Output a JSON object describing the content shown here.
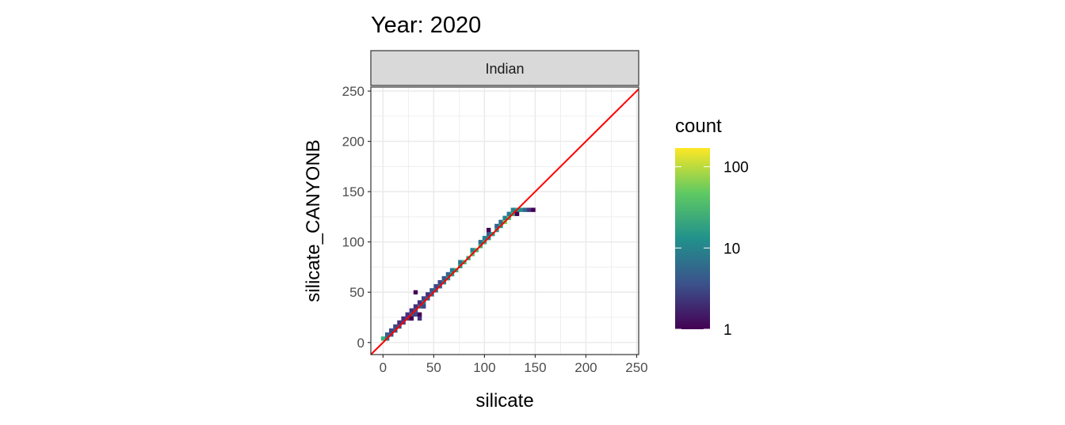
{
  "chart_data": {
    "type": "heatmap",
    "title": "Year: 2020",
    "facet": "Indian",
    "xlabel": "silicate",
    "ylabel": "silicate_CANYONB",
    "xlim": [
      -12,
      252
    ],
    "ylim": [
      -12,
      254
    ],
    "xticks": [
      0,
      50,
      100,
      150,
      200,
      250
    ],
    "yticks": [
      0,
      50,
      100,
      150,
      200,
      250
    ],
    "grid": true,
    "reference_line": {
      "slope": 1,
      "intercept": 0,
      "color": "#FF0000"
    },
    "legend": {
      "title": "count",
      "scale": "log10",
      "range": [
        1,
        170
      ],
      "ticks": [
        1,
        10,
        100
      ],
      "placement": "right",
      "palette": "viridis"
    },
    "binwidth": 4,
    "bins": [
      [
        0,
        4,
        30
      ],
      [
        4,
        4,
        8
      ],
      [
        4,
        8,
        5
      ],
      [
        8,
        8,
        4
      ],
      [
        8,
        12,
        3
      ],
      [
        12,
        12,
        5
      ],
      [
        12,
        16,
        3
      ],
      [
        16,
        16,
        4
      ],
      [
        16,
        20,
        2
      ],
      [
        20,
        20,
        3
      ],
      [
        20,
        24,
        2
      ],
      [
        24,
        24,
        3
      ],
      [
        24,
        28,
        2
      ],
      [
        28,
        28,
        5
      ],
      [
        28,
        32,
        2
      ],
      [
        28,
        24,
        1
      ],
      [
        32,
        32,
        4
      ],
      [
        32,
        36,
        2
      ],
      [
        32,
        28,
        3
      ],
      [
        32,
        50,
        1
      ],
      [
        36,
        36,
        6
      ],
      [
        36,
        40,
        2
      ],
      [
        36,
        28,
        1
      ],
      [
        36,
        24,
        2
      ],
      [
        40,
        40,
        8
      ],
      [
        40,
        44,
        3
      ],
      [
        40,
        36,
        3
      ],
      [
        44,
        44,
        5
      ],
      [
        44,
        48,
        2
      ],
      [
        48,
        48,
        6
      ],
      [
        48,
        52,
        4
      ],
      [
        52,
        52,
        8
      ],
      [
        52,
        56,
        3
      ],
      [
        56,
        56,
        6
      ],
      [
        56,
        60,
        3
      ],
      [
        60,
        60,
        12
      ],
      [
        60,
        64,
        4
      ],
      [
        64,
        64,
        14
      ],
      [
        64,
        68,
        5
      ],
      [
        68,
        68,
        20
      ],
      [
        68,
        72,
        8
      ],
      [
        72,
        72,
        25
      ],
      [
        76,
        76,
        20
      ],
      [
        76,
        80,
        8
      ],
      [
        80,
        80,
        30
      ],
      [
        84,
        84,
        25
      ],
      [
        88,
        88,
        40
      ],
      [
        88,
        92,
        10
      ],
      [
        92,
        92,
        35
      ],
      [
        96,
        96,
        30
      ],
      [
        96,
        100,
        6
      ],
      [
        100,
        100,
        25
      ],
      [
        100,
        104,
        10
      ],
      [
        104,
        104,
        12
      ],
      [
        104,
        108,
        5
      ],
      [
        104,
        112,
        1
      ],
      [
        108,
        108,
        20
      ],
      [
        112,
        112,
        15
      ],
      [
        112,
        116,
        5
      ],
      [
        116,
        116,
        20
      ],
      [
        116,
        120,
        6
      ],
      [
        120,
        120,
        60
      ],
      [
        120,
        124,
        10
      ],
      [
        124,
        124,
        40
      ],
      [
        124,
        128,
        8
      ],
      [
        128,
        128,
        30
      ],
      [
        128,
        132,
        10
      ],
      [
        132,
        132,
        20
      ],
      [
        136,
        132,
        12
      ],
      [
        140,
        132,
        5
      ],
      [
        144,
        132,
        2
      ],
      [
        148,
        132,
        1
      ],
      [
        132,
        128,
        1
      ]
    ]
  }
}
